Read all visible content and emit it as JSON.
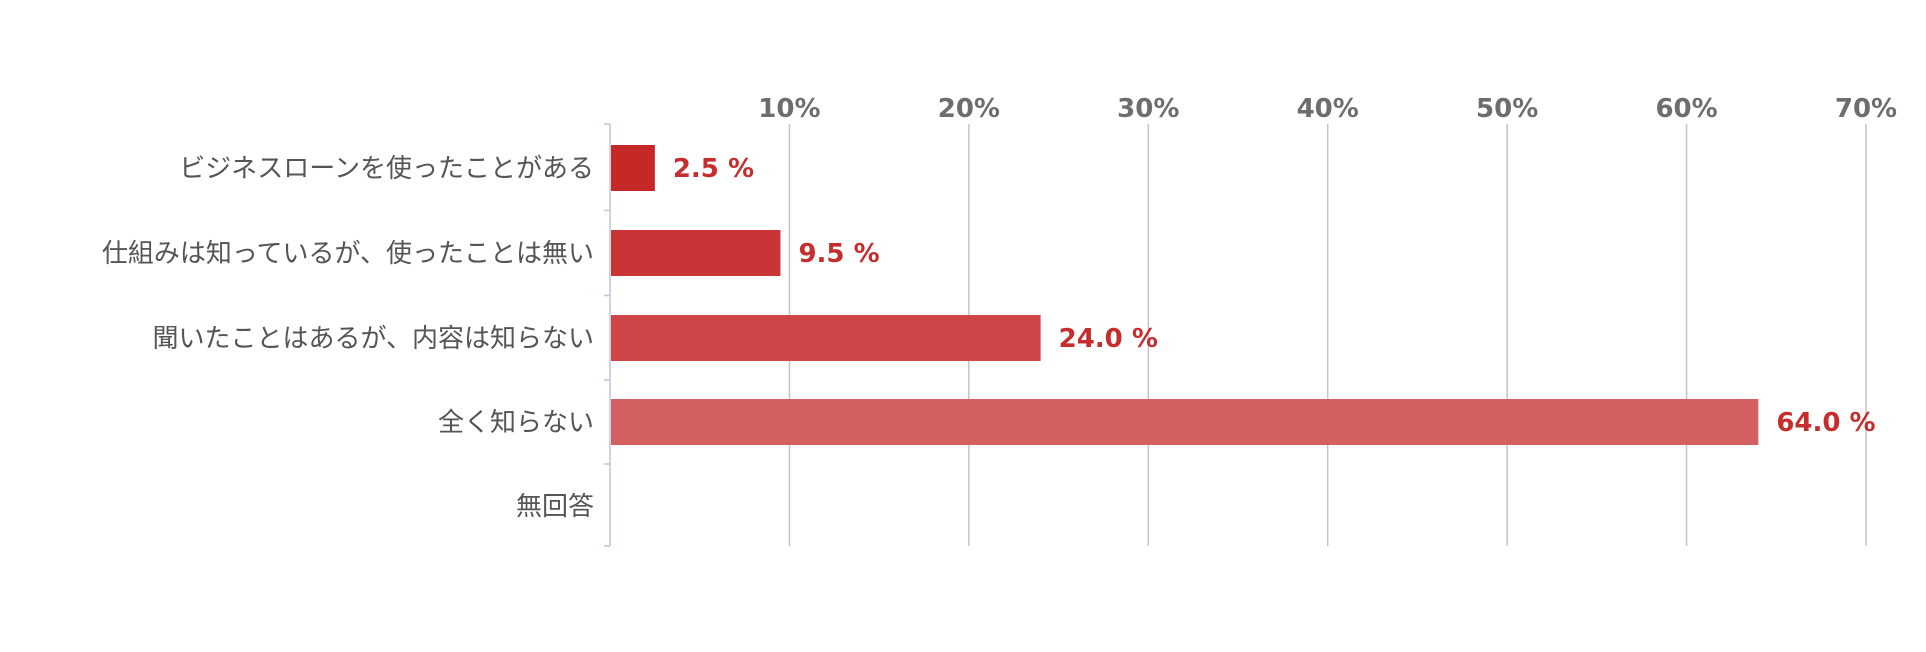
{
  "chart_data": {
    "type": "bar",
    "orientation": "horizontal",
    "categories": [
      "ビジネスローンを使ったことがある",
      "仕組みは知っているが、使ったことは無い",
      "聞いたことはあるが、内容は知らない",
      "全く知らない",
      "無回答"
    ],
    "values": [
      2.5,
      9.5,
      24.0,
      64.0,
      null
    ],
    "value_labels": [
      "2.5 %",
      "9.5 %",
      "24.0 %",
      "64.0 %",
      ""
    ],
    "tick_values": [
      10,
      20,
      30,
      40,
      50,
      60,
      70
    ],
    "tick_labels": [
      "10%",
      "20%",
      "30%",
      "40%",
      "50%",
      "60%",
      "70%"
    ],
    "xlim": [
      0,
      70
    ],
    "title": "",
    "xlabel": "",
    "ylabel": "",
    "grid": true,
    "legend": "none",
    "x_axis_position": "top",
    "colors": {
      "bar_gradient": [
        "#c62828",
        "#c93536",
        "#ce4547",
        "#d45f61"
      ],
      "value_label": "#c62d2d",
      "tick_label": "#6d6d6d",
      "category_label": "#555555",
      "grid": "#c4c4c4",
      "axis": "#b9c9dc"
    }
  }
}
